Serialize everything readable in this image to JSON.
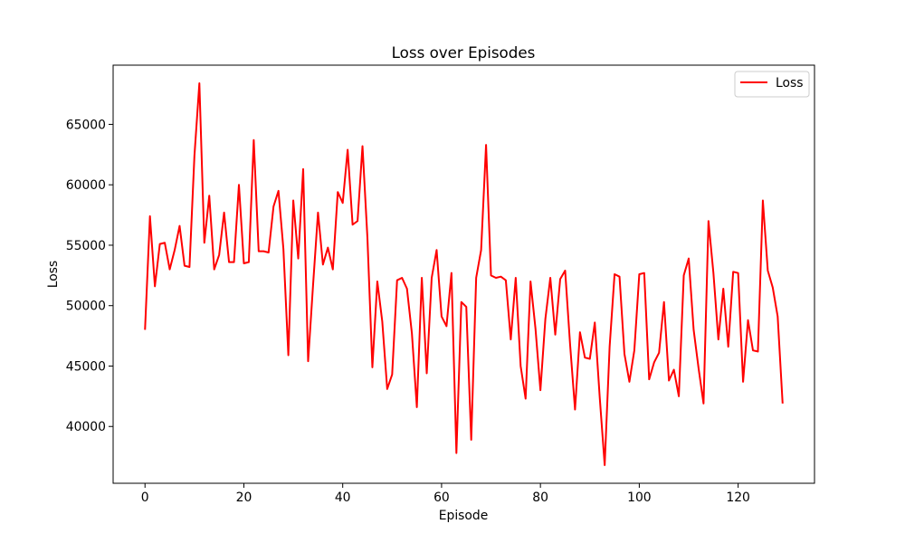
{
  "chart_data": {
    "type": "line",
    "title": "Loss over Episodes",
    "xlabel": "Episode",
    "ylabel": "Loss",
    "xlim": [
      -6.45,
      135.45
    ],
    "ylim": [
      35300,
      69900
    ],
    "xticks": [
      0,
      20,
      40,
      60,
      80,
      100,
      120
    ],
    "yticks": [
      40000,
      45000,
      50000,
      55000,
      60000,
      65000
    ],
    "grid": false,
    "legend_position": "upper right",
    "series": [
      {
        "name": "Loss",
        "color": "#ff0000",
        "x": [
          0,
          1,
          2,
          3,
          4,
          5,
          6,
          7,
          8,
          9,
          10,
          11,
          12,
          13,
          14,
          15,
          16,
          17,
          18,
          19,
          20,
          21,
          22,
          23,
          24,
          25,
          26,
          27,
          28,
          29,
          30,
          31,
          32,
          33,
          34,
          35,
          36,
          37,
          38,
          39,
          40,
          41,
          42,
          43,
          44,
          45,
          46,
          47,
          48,
          49,
          50,
          51,
          52,
          53,
          54,
          55,
          56,
          57,
          58,
          59,
          60,
          61,
          62,
          63,
          64,
          65,
          66,
          67,
          68,
          69,
          70,
          71,
          72,
          73,
          74,
          75,
          76,
          77,
          78,
          79,
          80,
          81,
          82,
          83,
          84,
          85,
          86,
          87,
          88,
          89,
          90,
          91,
          92,
          93,
          94,
          95,
          96,
          97,
          98,
          99,
          100,
          101,
          102,
          103,
          104,
          105,
          106,
          107,
          108,
          109,
          110,
          111,
          112,
          113,
          114,
          115,
          116,
          117,
          118,
          119,
          120,
          121,
          122,
          123,
          124,
          125,
          126,
          127,
          128,
          129
        ],
        "values": [
          48000,
          57400,
          51600,
          55100,
          55200,
          53000,
          54600,
          56600,
          53300,
          53200,
          62400,
          68400,
          55200,
          59100,
          53000,
          54200,
          57700,
          53600,
          53600,
          60000,
          53500,
          53600,
          63700,
          54500,
          54500,
          54400,
          58200,
          59500,
          54700,
          45900,
          58700,
          53900,
          61300,
          45400,
          51700,
          57700,
          53400,
          54800,
          53000,
          59400,
          58500,
          62900,
          56700,
          57000,
          63200,
          55600,
          44900,
          52000,
          48700,
          43100,
          44300,
          52100,
          52300,
          51400,
          47700,
          41600,
          52300,
          44400,
          52300,
          54600,
          49100,
          48300,
          52700,
          37800,
          50300,
          49900,
          38900,
          52300,
          54600,
          63300,
          52500,
          52300,
          52400,
          52100,
          47200,
          52300,
          45000,
          42300,
          52000,
          48100,
          43000,
          48900,
          52300,
          47600,
          52200,
          52900,
          46800,
          41400,
          47800,
          45700,
          45600,
          48600,
          42400,
          36800,
          46600,
          52600,
          52400,
          46000,
          43700,
          46300,
          52600,
          52700,
          43900,
          45300,
          46100,
          50300,
          43800,
          44700,
          42500,
          52500,
          53900,
          48000,
          44800,
          41900,
          57000,
          52700,
          47200,
          51400,
          46600,
          52800,
          52700,
          43700,
          48800,
          46300,
          46200,
          58700,
          52900,
          51500,
          49100,
          41900
        ]
      }
    ]
  }
}
